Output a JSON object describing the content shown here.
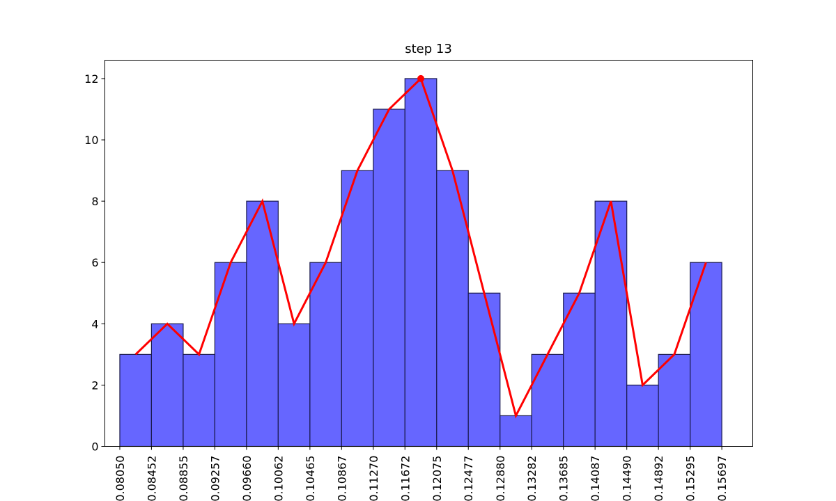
{
  "chart_data": {
    "type": "bar",
    "title": "step 13",
    "xlabel": "",
    "ylabel": "",
    "bin_edges": [
      "0.08050",
      "0.08452",
      "0.08855",
      "0.09257",
      "0.09660",
      "0.10062",
      "0.10465",
      "0.10867",
      "0.11270",
      "0.11672",
      "0.12075",
      "0.12477",
      "0.12880",
      "0.13282",
      "0.13685",
      "0.14087",
      "0.14490",
      "0.14892",
      "0.15295",
      "0.15697"
    ],
    "values": [
      3,
      4,
      3,
      6,
      8,
      4,
      6,
      9,
      11,
      12,
      9,
      5,
      1,
      3,
      5,
      8,
      2,
      3,
      6
    ],
    "line_series": {
      "values": [
        3,
        4,
        3,
        6,
        8,
        4,
        6,
        9,
        11,
        12,
        9,
        5,
        1,
        3,
        5,
        8,
        2,
        3,
        6
      ],
      "points_at": "bin-centers",
      "color": "#ff0000",
      "highlighted_index": 9
    },
    "yticks": [
      0,
      2,
      4,
      6,
      8,
      10,
      12
    ],
    "ylim": [
      0,
      12.6
    ],
    "xlim": [
      0.0786,
      0.1609
    ],
    "bar_color": "#6666ff",
    "bar_edge_color": "#1a1a4d",
    "grid": false,
    "legend": "none"
  }
}
